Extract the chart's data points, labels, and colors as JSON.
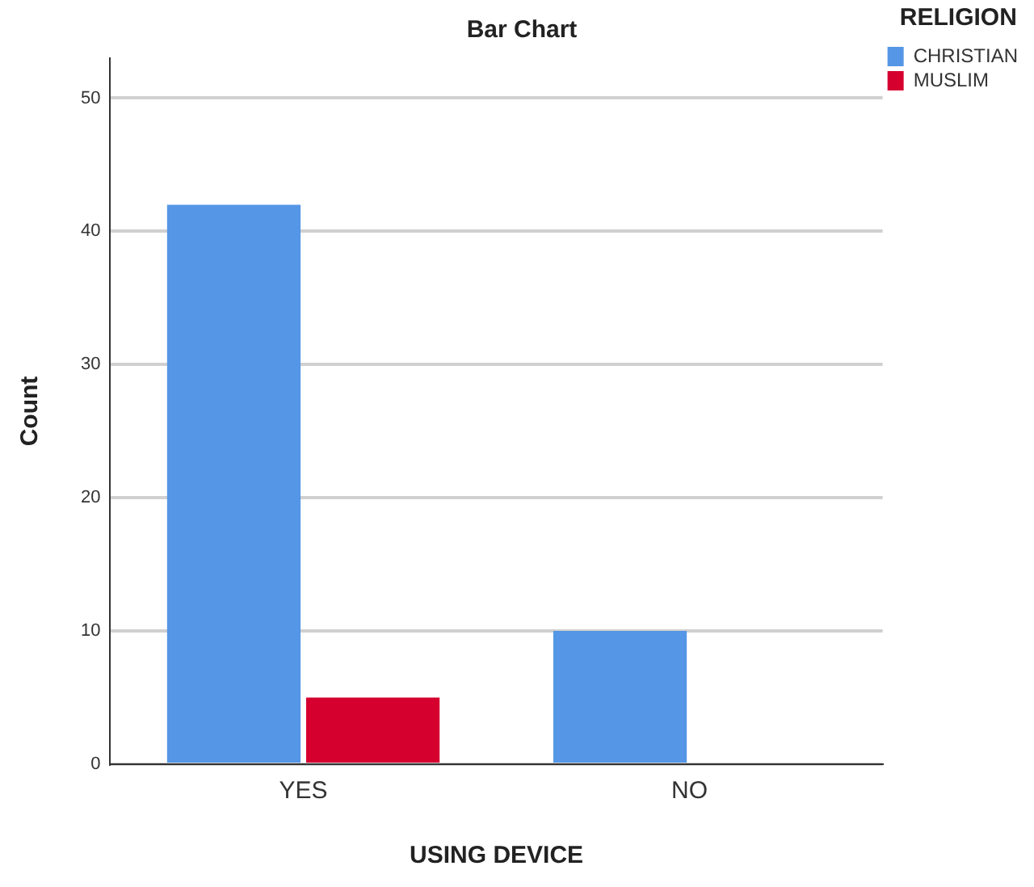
{
  "chart_data": {
    "type": "bar",
    "title": "Bar Chart",
    "xlabel": "USING DEVICE",
    "ylabel": "Count",
    "legend_title": "RELIGION",
    "categories": [
      "YES",
      "NO"
    ],
    "series": [
      {
        "name": "CHRISTIAN",
        "color": "#5596e6",
        "values": [
          42,
          10
        ]
      },
      {
        "name": "MUSLIM",
        "color": "#d6002f",
        "values": [
          5,
          0
        ]
      }
    ],
    "ylim": [
      0,
      53
    ],
    "yticks": [
      0,
      10,
      20,
      30,
      40,
      50
    ],
    "grid": "y",
    "legend": "top right"
  }
}
